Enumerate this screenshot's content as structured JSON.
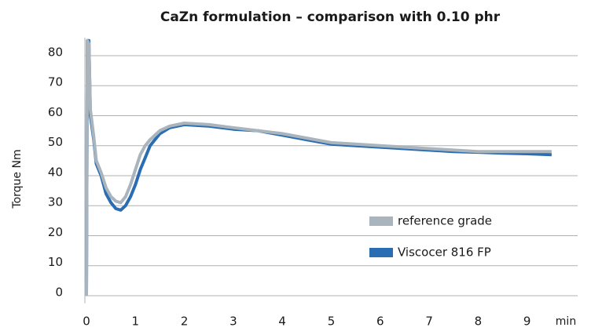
{
  "chart_data": {
    "type": "line",
    "title": "CaZn formulation – comparison with 0.10 phr",
    "y_label": "Torque  Nm",
    "x_label": "min",
    "x": [
      0,
      0.02,
      0.05,
      0.08,
      0.15,
      0.2,
      0.3,
      0.4,
      0.5,
      0.6,
      0.7,
      0.8,
      0.9,
      1.0,
      1.1,
      1.2,
      1.3,
      1.5,
      1.7,
      2.0,
      2.5,
      3.0,
      3.5,
      4.0,
      4.5,
      5.0,
      5.5,
      6.0,
      6.5,
      7.0,
      7.5,
      8.0,
      8.5,
      9.0,
      9.5
    ],
    "series": [
      {
        "name": "reference grade",
        "color": "#a9b4bc",
        "values": [
          0,
          85,
          84,
          62,
          53,
          45,
          41,
          36,
          33,
          31.5,
          31,
          33,
          37,
          42,
          47,
          50,
          52,
          55,
          56.5,
          57.5,
          57,
          56,
          55,
          54,
          52.5,
          51,
          50.5,
          50,
          49.5,
          49,
          48.5,
          48,
          48,
          48,
          48
        ]
      },
      {
        "name": "Viscocer 816 FP",
        "color": "#2a6db3",
        "values": [
          0,
          85,
          85,
          60,
          52,
          44,
          40,
          34,
          31,
          29,
          28.5,
          30,
          33,
          37,
          42,
          46,
          50,
          54,
          56,
          57,
          56.5,
          55.5,
          55,
          53.5,
          52,
          50.5,
          50,
          49.5,
          49,
          48.5,
          48,
          47.8,
          47.5,
          47.3,
          47
        ]
      }
    ],
    "xlim": [
      0,
      10
    ],
    "xticks": [
      0,
      1,
      2,
      3,
      4,
      5,
      6,
      7,
      8,
      9
    ],
    "ylim": [
      -2,
      86
    ],
    "yticks": [
      0,
      10,
      20,
      30,
      40,
      50,
      60,
      70,
      80
    ],
    "grid": true
  }
}
